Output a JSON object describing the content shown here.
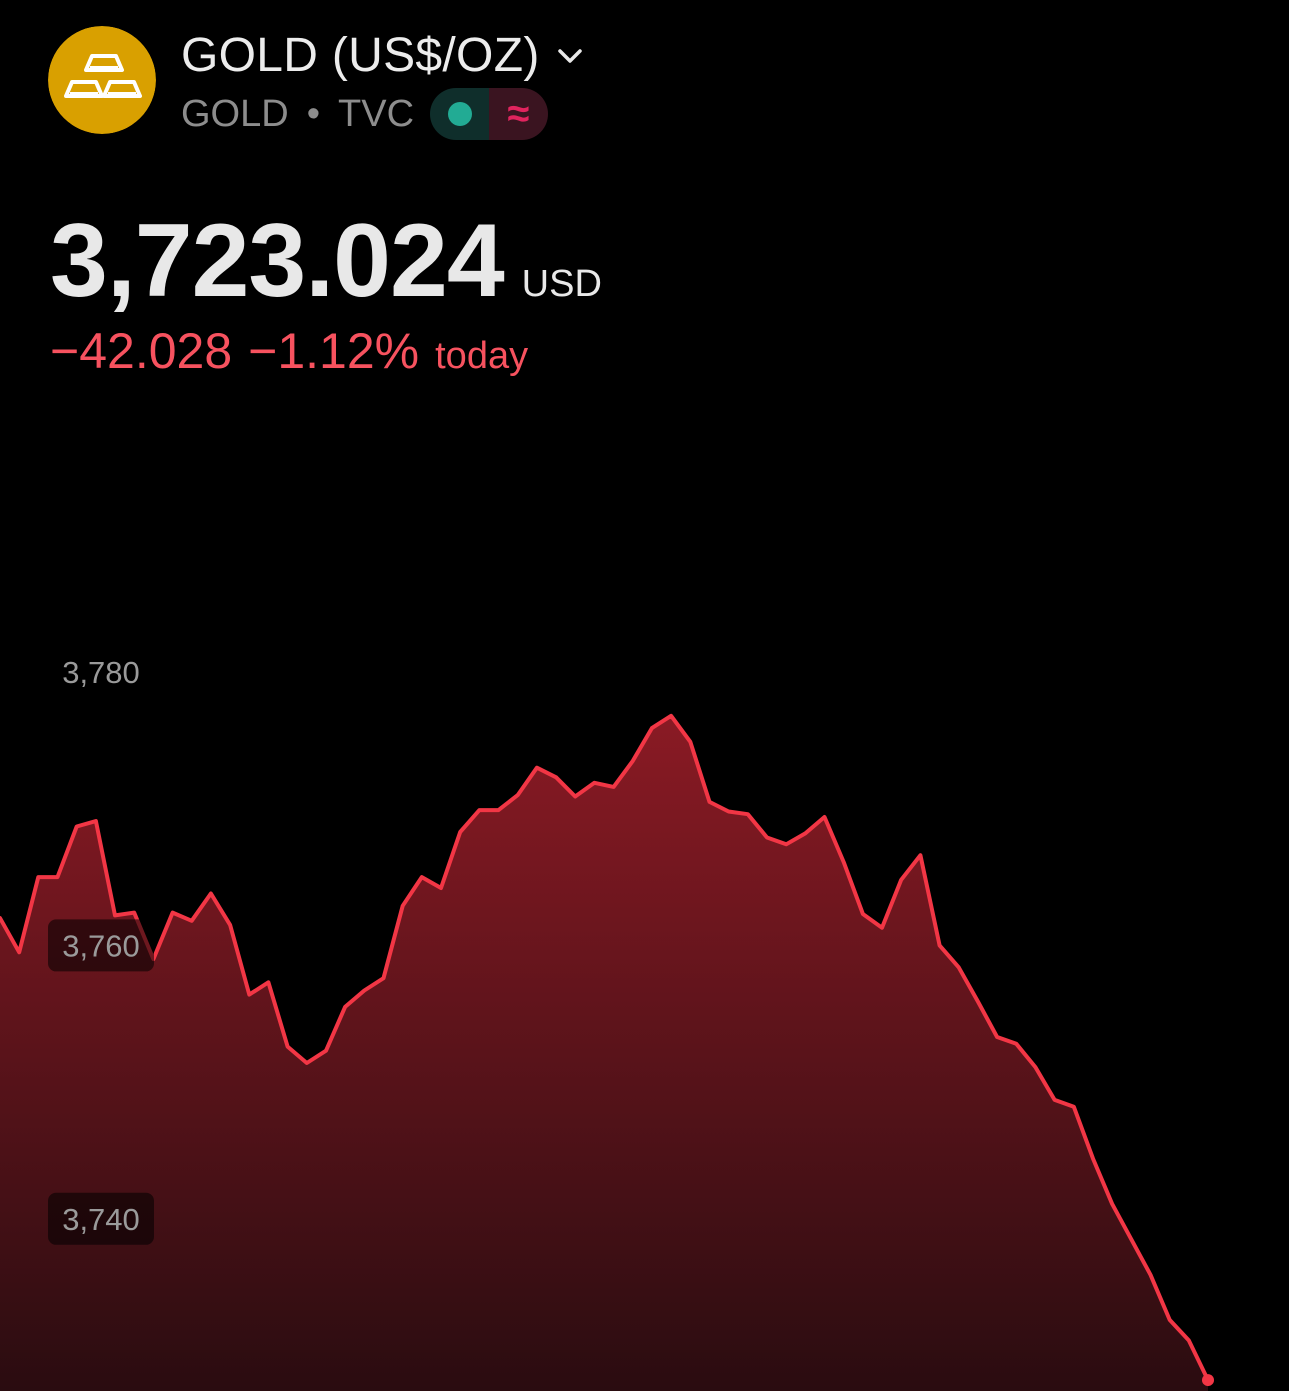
{
  "symbol": {
    "name": "GOLD (US$/OZ)",
    "ticker": "GOLD",
    "exchange": "TVC",
    "separator": "•",
    "status_indicator": "≈",
    "logo_color": "#D9A000",
    "logo_icon": "gold-bars-icon",
    "dropdown_icon": "chevron-down-icon"
  },
  "quote": {
    "price": "3,723.024",
    "currency": "USD",
    "change": "−42.028",
    "change_percent": "−1.12%",
    "change_period": "today",
    "change_color": "#F7525F"
  },
  "chart_data": {
    "type": "area",
    "title": "",
    "xlabel": "",
    "ylabel": "",
    "ylim": [
      3727.4,
      3788.2
    ],
    "y_ticks": [
      3780,
      3760,
      3740
    ],
    "y_tick_labels": [
      "3,780",
      "3,760",
      "3,740"
    ],
    "grid": false,
    "line_color": "#F23645",
    "series": [
      {
        "values": [
          3762.0,
          3759.5,
          3765.0,
          3765.0,
          3768.7,
          3769.1,
          3762.2,
          3762.4,
          3759.0,
          3762.4,
          3761.8,
          3763.8,
          3761.5,
          3756.4,
          3757.3,
          3752.6,
          3751.4,
          3752.3,
          3755.5,
          3756.7,
          3757.6,
          3762.9,
          3765.0,
          3764.2,
          3768.3,
          3769.9,
          3769.9,
          3771.0,
          3773.0,
          3772.3,
          3770.9,
          3771.9,
          3771.6,
          3773.5,
          3775.9,
          3776.8,
          3774.9,
          3770.5,
          3769.8,
          3769.6,
          3767.9,
          3767.4,
          3768.2,
          3769.4,
          3766.1,
          3762.3,
          3761.3,
          3764.8,
          3766.6,
          3760.0,
          3758.4,
          3755.9,
          3753.3,
          3752.8,
          3751.1,
          3748.7,
          3748.2,
          3744.4,
          3741.1,
          3738.5,
          3735.9,
          3732.6,
          3731.1,
          3728.2
        ]
      }
    ]
  }
}
